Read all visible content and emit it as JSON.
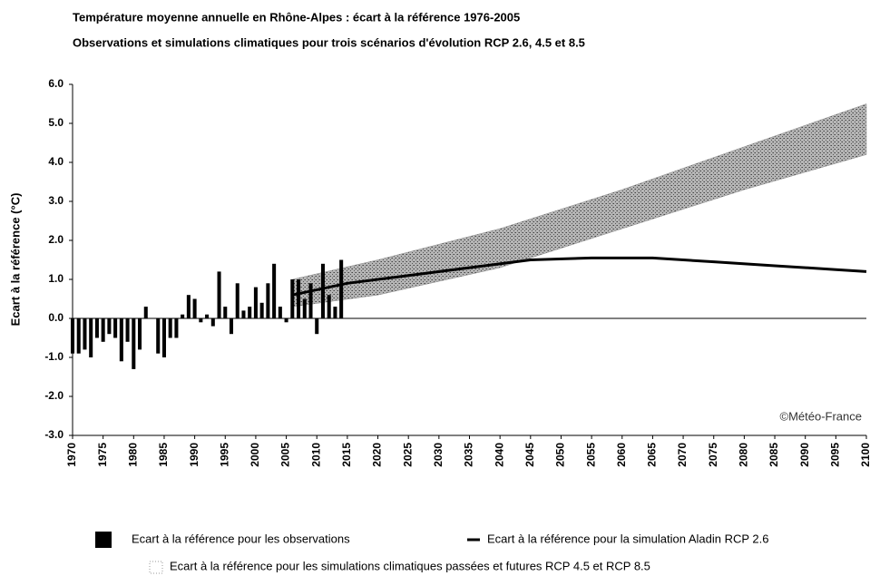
{
  "chart_data": {
    "type": "bar",
    "title": "Température moyenne annuelle en Rhône-Alpes : écart à la référence 1976-2005",
    "subtitle": "Observations et simulations climatiques pour trois scénarios d'évolution RCP 2.6, 4.5 et 8.5",
    "y_label": "Ecart à la référence (°C)",
    "annotation": "©Météo-France",
    "xlim": [
      1970,
      2100
    ],
    "xticks": [
      1970,
      1975,
      1980,
      1985,
      1990,
      1995,
      2000,
      2005,
      2010,
      2015,
      2020,
      2025,
      2030,
      2035,
      2040,
      2045,
      2050,
      2055,
      2060,
      2065,
      2070,
      2075,
      2080,
      2085,
      2090,
      2095,
      2100
    ],
    "ylim": [
      -3,
      6
    ],
    "yticks": [
      {
        "value": -3,
        "label": "-3.0"
      },
      {
        "value": -2,
        "label": "-2.0"
      },
      {
        "value": -1,
        "label": "-1.0"
      },
      {
        "value": 0,
        "label": "0.0"
      },
      {
        "value": 1,
        "label": "1.0"
      },
      {
        "value": 2,
        "label": "2.0"
      },
      {
        "value": 3,
        "label": "3.0"
      },
      {
        "value": 4,
        "label": "4.0"
      },
      {
        "value": 5,
        "label": "5.0"
      },
      {
        "value": 6,
        "label": "6.0"
      }
    ],
    "series": [
      {
        "name": "Ecart à la référence pour les simulations climatiques passées et futures RCP 4.5 et RCP 8.5",
        "type": "band",
        "color": "#8a8a8a",
        "x": [
          2006,
          2020,
          2040,
          2060,
          2080,
          2100
        ],
        "lower": [
          0.3,
          0.6,
          1.3,
          2.3,
          3.3,
          4.2
        ],
        "upper": [
          1.0,
          1.5,
          2.3,
          3.3,
          4.4,
          5.5
        ]
      },
      {
        "name": "Ecart à la référence pour les observations",
        "type": "bar",
        "color": "#000000",
        "x": [
          1970,
          1971,
          1972,
          1973,
          1974,
          1975,
          1976,
          1977,
          1978,
          1979,
          1980,
          1981,
          1982,
          1983,
          1984,
          1985,
          1986,
          1987,
          1988,
          1989,
          1990,
          1991,
          1992,
          1993,
          1994,
          1995,
          1996,
          1997,
          1998,
          1999,
          2000,
          2001,
          2002,
          2003,
          2004,
          2005,
          2006,
          2007,
          2008,
          2009,
          2010,
          2011,
          2012,
          2013,
          2014
        ],
        "values": [
          -0.9,
          -0.9,
          -0.8,
          -1.0,
          -0.5,
          -0.6,
          -0.4,
          -0.5,
          -1.1,
          -0.6,
          -1.3,
          -0.8,
          0.3,
          0.0,
          -0.9,
          -1.0,
          -0.5,
          -0.5,
          0.1,
          0.6,
          0.5,
          -0.1,
          0.1,
          -0.2,
          1.2,
          0.3,
          -0.4,
          0.9,
          0.2,
          0.3,
          0.8,
          0.4,
          0.9,
          1.4,
          0.3,
          -0.1,
          1.0,
          1.0,
          0.5,
          0.9,
          -0.4,
          1.4,
          0.6,
          0.3,
          1.5
        ]
      },
      {
        "name": "Ecart à la référence pour la simulation Aladin RCP 2.6",
        "type": "line",
        "color": "#000000",
        "x": [
          2006,
          2015,
          2025,
          2035,
          2045,
          2055,
          2065,
          2075,
          2085,
          2095,
          2100
        ],
        "values": [
          0.6,
          0.9,
          1.1,
          1.3,
          1.5,
          1.55,
          1.55,
          1.45,
          1.35,
          1.25,
          1.2
        ]
      }
    ]
  }
}
